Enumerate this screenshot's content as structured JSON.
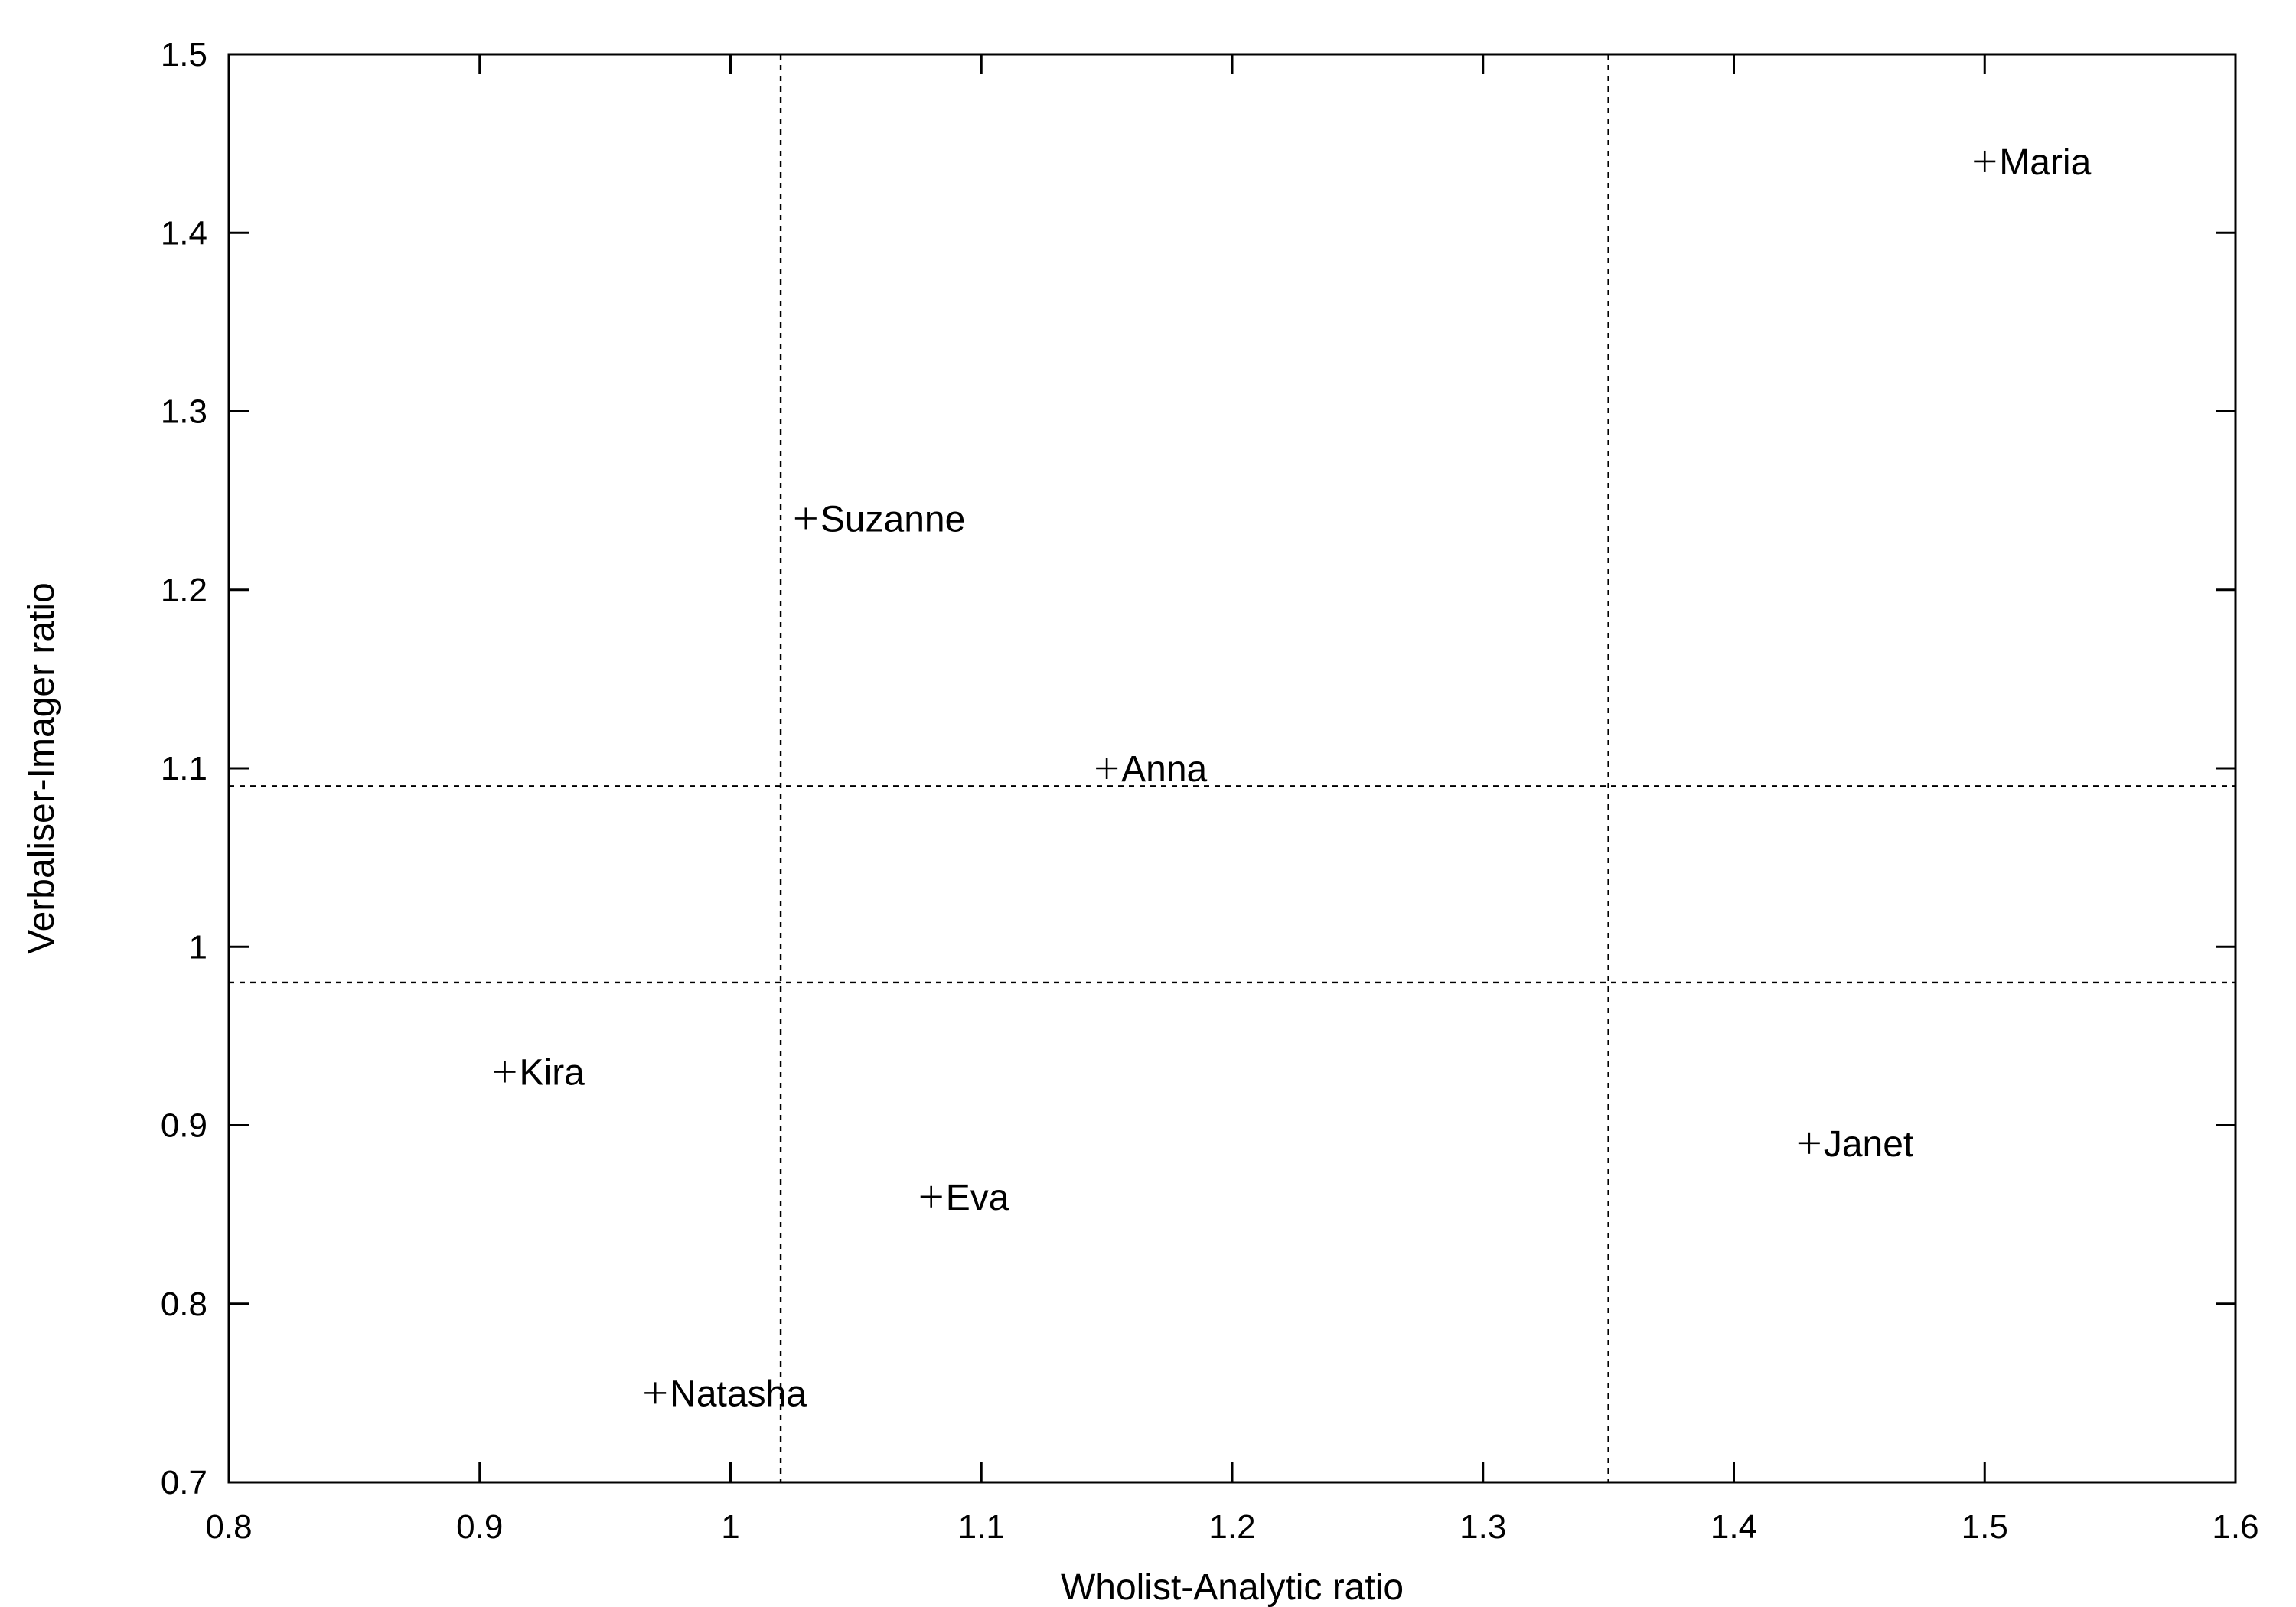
{
  "chart_data": {
    "type": "scatter",
    "xlabel": "Wholist-Analytic ratio",
    "ylabel": "Verbaliser-Imager ratio",
    "xlim": [
      0.8,
      1.6
    ],
    "ylim": [
      0.7,
      1.5
    ],
    "x_ticks": [
      "0.8",
      "0.9",
      "1",
      "1.1",
      "1.2",
      "1.3",
      "1.4",
      "1.5",
      "1.6"
    ],
    "y_ticks": [
      "0.7",
      "0.8",
      "0.9",
      "1",
      "1.1",
      "1.2",
      "1.3",
      "1.4",
      "1.5"
    ],
    "grid": false,
    "reference_lines": {
      "x": [
        1.02,
        1.35
      ],
      "y": [
        0.98,
        1.09
      ]
    },
    "points": [
      {
        "label": "Maria",
        "x": 1.5,
        "y": 1.44
      },
      {
        "label": "Suzanne",
        "x": 1.03,
        "y": 1.24
      },
      {
        "label": "Anna",
        "x": 1.15,
        "y": 1.1
      },
      {
        "label": "Kira",
        "x": 0.91,
        "y": 0.93
      },
      {
        "label": "Janet",
        "x": 1.43,
        "y": 0.89
      },
      {
        "label": "Eva",
        "x": 1.08,
        "y": 0.86
      },
      {
        "label": "Natasha",
        "x": 0.97,
        "y": 0.75
      }
    ]
  }
}
